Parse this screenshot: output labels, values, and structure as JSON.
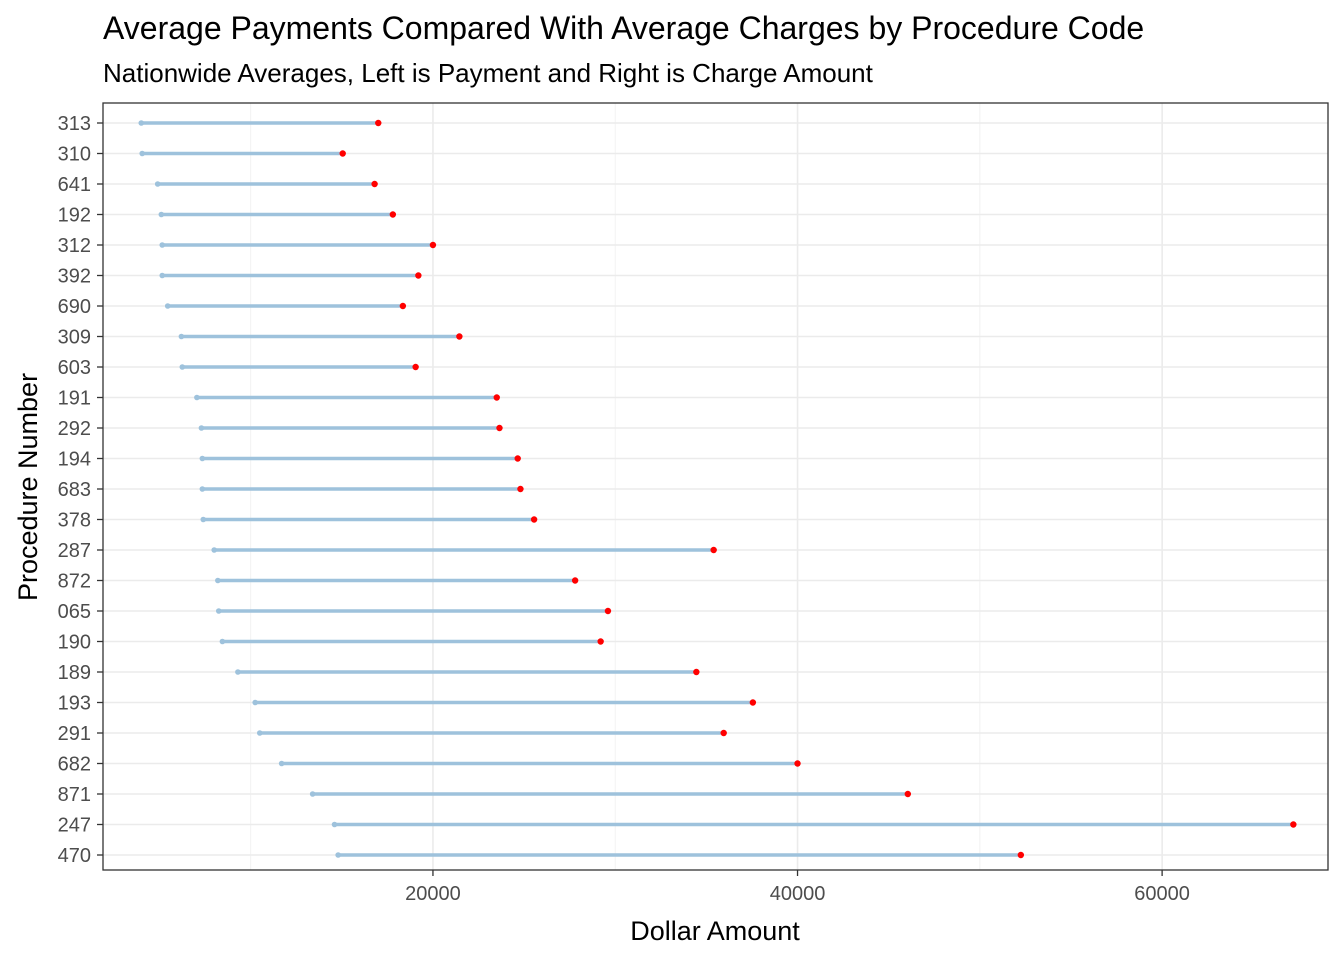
{
  "chart_data": {
    "type": "dumbbell",
    "title": "Average Payments Compared With Average Charges by Procedure Code",
    "subtitle": "Nationwide Averages, Left is Payment and Right is Charge Amount",
    "xlabel": "Dollar Amount",
    "ylabel": "Procedure Number",
    "xlim": [
      1900,
      69100
    ],
    "x_ticks": [
      20000,
      40000,
      60000
    ],
    "x_tick_labels": [
      "20000",
      "40000",
      "60000"
    ],
    "grid": true,
    "colors": {
      "payment": "#9ec2dc",
      "charge": "#ff0000",
      "segment": "#9ec2dc"
    },
    "categories": [
      "313",
      "310",
      "641",
      "192",
      "312",
      "392",
      "690",
      "309",
      "603",
      "191",
      "292",
      "194",
      "683",
      "378",
      "287",
      "872",
      "065",
      "190",
      "189",
      "193",
      "291",
      "682",
      "871",
      "247",
      "470"
    ],
    "payment": [
      4000,
      4050,
      4900,
      5100,
      5150,
      5150,
      5450,
      6200,
      6250,
      7050,
      7300,
      7350,
      7350,
      7400,
      8000,
      8200,
      8250,
      8450,
      9300,
      10250,
      10500,
      11700,
      13400,
      14600,
      14800
    ],
    "charge": [
      17000,
      15050,
      16800,
      17800,
      20000,
      19200,
      18350,
      21450,
      19050,
      23500,
      23650,
      24650,
      24800,
      25550,
      35400,
      27800,
      29600,
      29200,
      34450,
      37550,
      35950,
      40000,
      46050,
      67200,
      52250
    ]
  }
}
